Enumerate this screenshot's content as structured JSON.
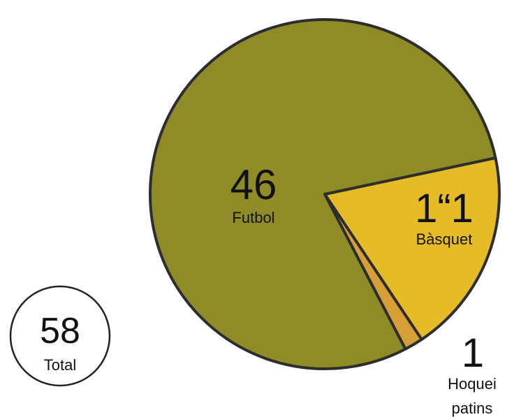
{
  "chart_data": {
    "type": "pie",
    "categories": [
      "Futbol",
      "Bàsquet",
      "Hoquei patins"
    ],
    "values": [
      46,
      11,
      1
    ],
    "value_labels": [
      "46",
      "1“1",
      "1"
    ],
    "category_labels": [
      [
        "Futbol"
      ],
      [
        "Bàsquet"
      ],
      [
        "Hoquei",
        "patins"
      ]
    ],
    "colors": [
      "#8f8b26",
      "#e5bb26",
      "#d69e36"
    ],
    "total": {
      "value": "58",
      "label": "Total"
    },
    "legend": "none"
  }
}
